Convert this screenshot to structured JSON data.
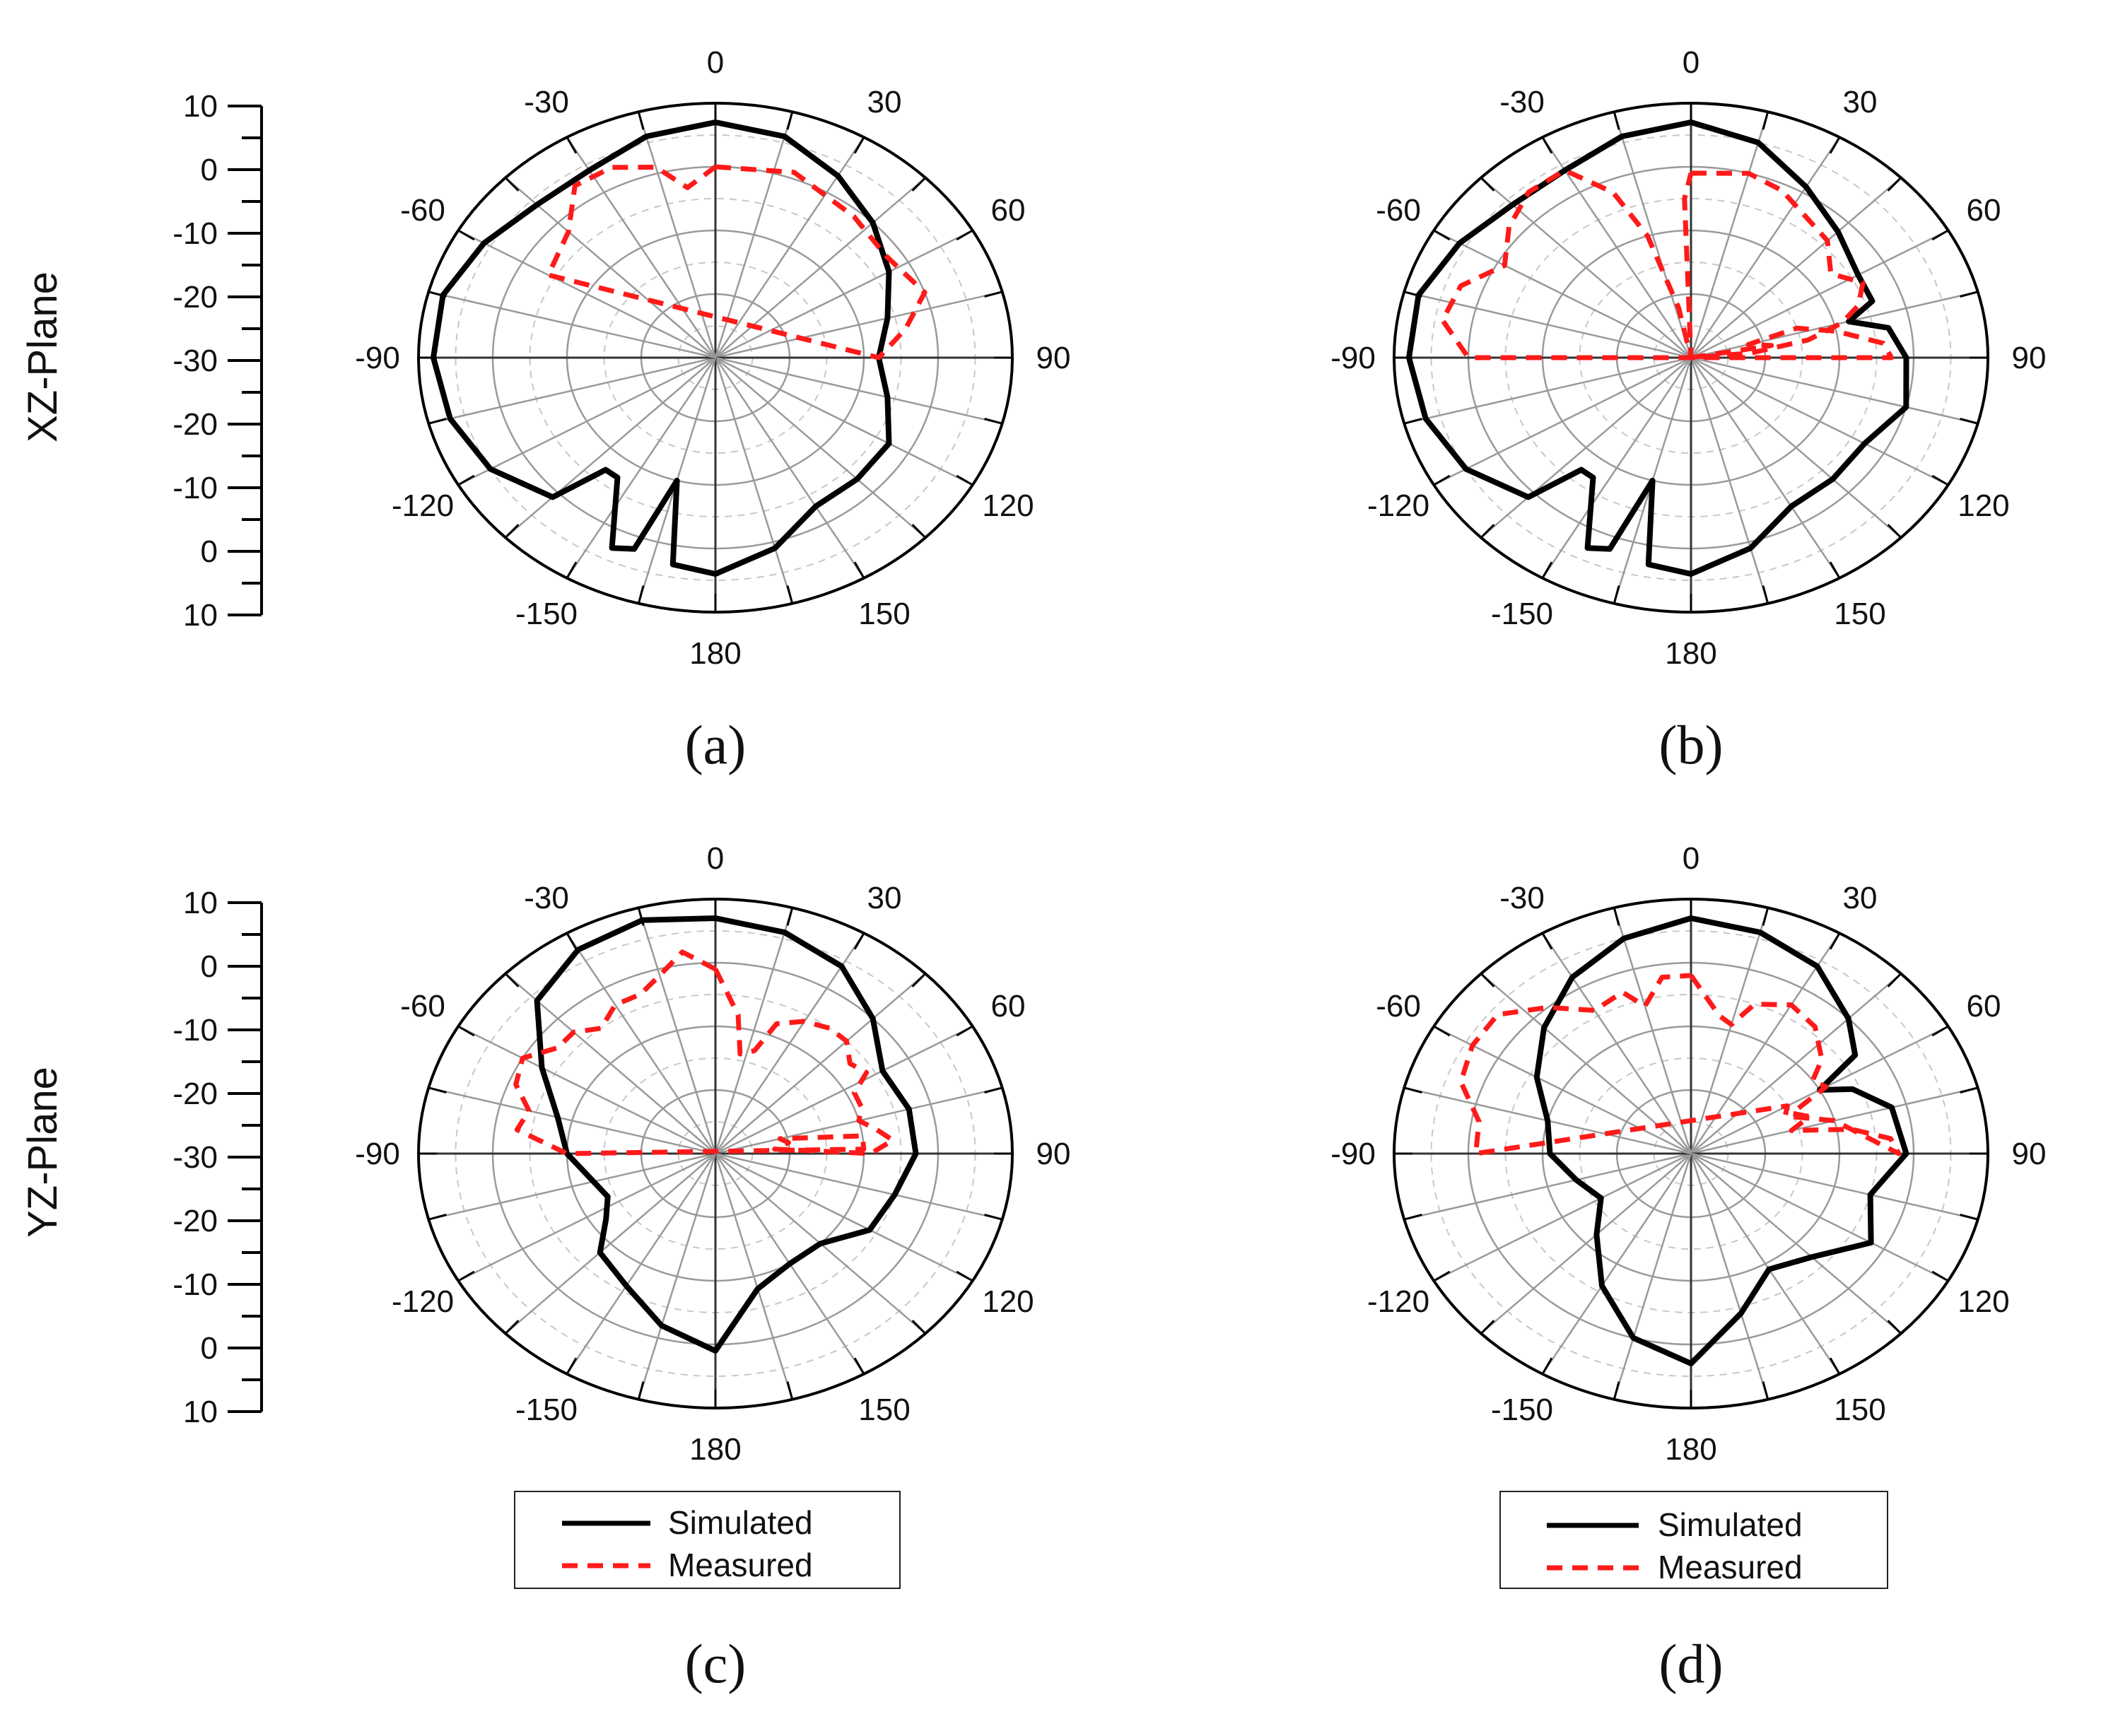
{
  "legend": {
    "simulated": "Simulated",
    "measured": "Measured"
  },
  "colors": {
    "simulated": "#000000",
    "measured": "#ff1a1a",
    "grid": "#9a9a9a",
    "grid_minor": "#c8c8c8"
  },
  "row_labels": [
    "XZ-Plane",
    "YZ-Plane"
  ],
  "axis_ticks": [
    "10",
    "0",
    "-10",
    "-20",
    "-30",
    "-20",
    "-10",
    "0",
    "10"
  ],
  "angle_labels": [
    "0",
    "30",
    "60",
    "90",
    "120",
    "150",
    "180",
    "-150",
    "-120",
    "-90",
    "-60",
    "-30"
  ],
  "chart_data": [
    {
      "type": "polar",
      "caption": "(a)",
      "rlim": [
        -30,
        10
      ],
      "angle_ticks": [
        0,
        30,
        60,
        90,
        120,
        150,
        180,
        -150,
        -120,
        -90,
        -60,
        -30
      ],
      "series": [
        {
          "name": "Simulated",
          "theta": [
            0,
            15,
            30,
            45,
            60,
            75,
            90,
            105,
            120,
            135,
            150,
            165,
            180,
            190,
            195,
            200,
            205,
            215,
            220,
            225,
            240,
            255,
            270,
            285,
            300,
            315,
            330,
            345,
            360
          ],
          "r": [
            7,
            6,
            3,
            0,
            -3,
            -6,
            -8,
            -6,
            -3,
            -3,
            -3,
            1,
            4,
            3,
            -10,
            2,
            3,
            -7,
            -7,
            1,
            5,
            7,
            8,
            8,
            6,
            4,
            4,
            6,
            7
          ]
        },
        {
          "name": "Measured",
          "theta": [
            0,
            20,
            40,
            55,
            70,
            80,
            90,
            300,
            315,
            325,
            335,
            345,
            352,
            360
          ],
          "r": [
            0,
            1,
            -1,
            -2,
            0,
            -4,
            -8,
            -4,
            -2,
            3,
            3,
            1,
            -3,
            0
          ]
        }
      ]
    },
    {
      "type": "polar",
      "caption": "(b)",
      "rlim": [
        -30,
        10
      ],
      "angle_ticks": [
        0,
        30,
        60,
        90,
        120,
        150,
        180,
        -150,
        -120,
        -90,
        -60,
        -30
      ],
      "series": [
        {
          "name": "Simulated",
          "theta": [
            0,
            15,
            30,
            45,
            60,
            70,
            75,
            80,
            90,
            105,
            120,
            135,
            150,
            165,
            180,
            190,
            195,
            200,
            205,
            215,
            220,
            225,
            240,
            255,
            270,
            285,
            300,
            315,
            330,
            345,
            360
          ],
          "r": [
            7,
            5,
            1,
            -2,
            -4,
            -4,
            -8,
            -3,
            -1,
            0,
            -3,
            -3,
            -3,
            1,
            4,
            3,
            -10,
            2,
            3,
            -7,
            -7,
            1,
            5,
            7,
            8,
            8,
            6,
            4,
            4,
            6,
            7
          ]
        },
        {
          "name": "Measured",
          "theta": [
            0,
            15,
            25,
            35,
            45,
            55,
            63,
            70,
            75,
            80,
            85,
            90,
            80,
            75,
            72,
            78,
            85,
            90,
            270,
            280,
            290,
            300,
            310,
            320,
            330,
            338,
            343,
            348,
            353,
            358,
            0
          ],
          "r": [
            -1,
            0,
            -1,
            -3,
            -4,
            -7,
            -4,
            -6,
            -9,
            -14,
            -22,
            -30,
            -19,
            -22,
            -15,
            -10,
            -4,
            -3,
            0,
            4,
            3,
            -1,
            2,
            4,
            4,
            -2,
            -10,
            -22,
            -30,
            -5,
            -1
          ]
        }
      ]
    },
    {
      "type": "polar",
      "caption": "(c)",
      "rlim": [
        -30,
        10
      ],
      "angle_ticks": [
        0,
        30,
        60,
        90,
        120,
        150,
        180,
        -150,
        -120,
        -90,
        -60,
        -30
      ],
      "series": [
        {
          "name": "Simulated",
          "theta": [
            0,
            15,
            30,
            45,
            60,
            75,
            90,
            105,
            120,
            135,
            150,
            165,
            180,
            195,
            210,
            225,
            235,
            245,
            255,
            270,
            285,
            300,
            315,
            330,
            345,
            360
          ],
          "r": [
            7,
            6,
            4,
            0,
            -4,
            -3,
            -3,
            -5,
            -6,
            -10,
            -10,
            -8,
            1,
            -2,
            -6,
            -8,
            -12,
            -14,
            -13,
            -10,
            -8,
            -3,
            4,
            7,
            8,
            7
          ]
        },
        {
          "name": "Measured",
          "theta": [
            0,
            8,
            12,
            18,
            22,
            30,
            38,
            45,
            52,
            58,
            63,
            70,
            75,
            80,
            85,
            88,
            90,
            85,
            80,
            75,
            82,
            88,
            270,
            278,
            285,
            292,
            300,
            308,
            315,
            322,
            330,
            338,
            345,
            352,
            360
          ],
          "r": [
            -1,
            -8,
            -14,
            -13,
            -8,
            -6,
            -5,
            -5,
            -7,
            -6,
            -9,
            -9,
            -10,
            -8,
            -6,
            -8,
            -9,
            -22,
            -20,
            -21,
            -10,
            -10,
            -10,
            -3,
            -4,
            -1,
            0,
            -3,
            -3,
            -5,
            -3,
            -3,
            -1,
            2,
            -1
          ]
        }
      ]
    },
    {
      "type": "polar",
      "caption": "(d)",
      "rlim": [
        -30,
        10
      ],
      "angle_ticks": [
        0,
        30,
        60,
        90,
        120,
        150,
        180,
        -150,
        -120,
        -90,
        -60,
        -30
      ],
      "series": [
        {
          "name": "Simulated",
          "theta": [
            0,
            15,
            30,
            45,
            55,
            60,
            65,
            75,
            90,
            105,
            120,
            135,
            150,
            165,
            180,
            195,
            210,
            225,
            240,
            255,
            270,
            285,
            300,
            315,
            330,
            345,
            360
          ],
          "r": [
            7,
            6,
            4,
            0,
            -3,
            -10,
            -6,
            -2,
            -1,
            -5,
            -2,
            -7,
            -9,
            -4,
            3,
            0,
            -6,
            -12,
            -16,
            -14,
            -11,
            -10,
            -6,
            -2,
            2,
            5,
            7
          ]
        },
        {
          "name": "Measured",
          "theta": [
            0,
            10,
            15,
            20,
            30,
            40,
            50,
            55,
            60,
            65,
            70,
            75,
            80,
            85,
            90,
            75,
            65,
            60,
            270,
            280,
            290,
            300,
            310,
            320,
            330,
            340,
            345,
            352,
            360
          ],
          "r": [
            -2,
            -8,
            -9,
            -5,
            -3,
            -4,
            -7,
            -10,
            -9,
            -15,
            -13,
            -16,
            -8,
            -3,
            -2,
            -10,
            -16,
            -15,
            -1,
            -1,
            3,
            4,
            4,
            0,
            -4,
            -3,
            -6,
            -2,
            -2
          ]
        }
      ]
    }
  ]
}
